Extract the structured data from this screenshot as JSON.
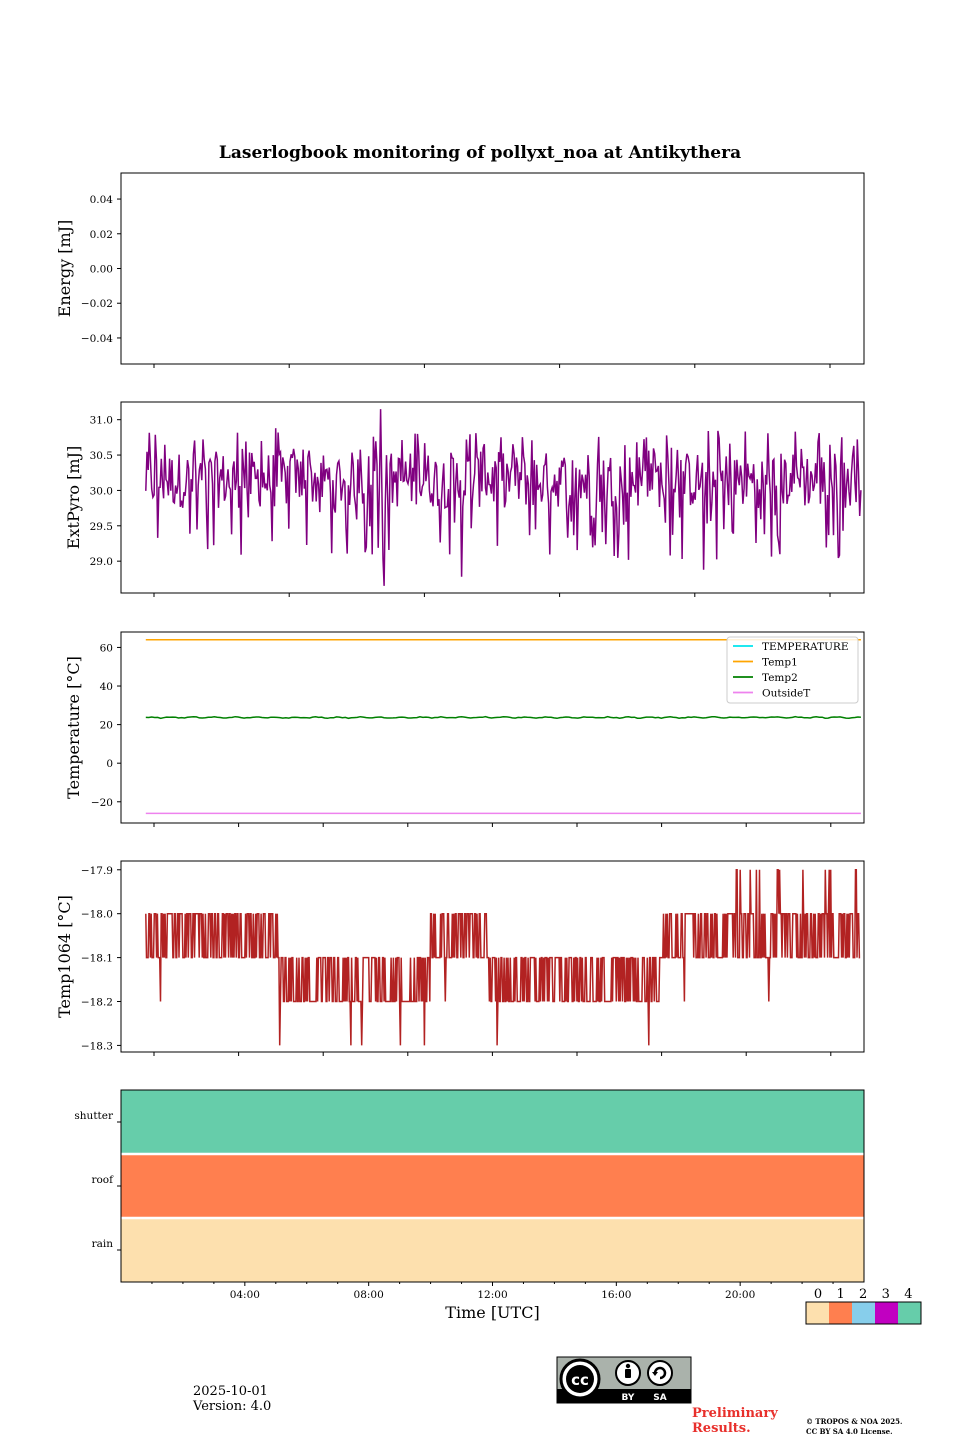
{
  "chart_data": [
    {
      "id": "energy",
      "type": "line",
      "title": "Laserlogbook monitoring of pollyxt_noa at Antikythera",
      "ylabel": "Energy [mJ]",
      "ylim": [
        -0.055,
        0.055
      ],
      "yticks": [
        0.04,
        0.02,
        0.0,
        -0.02,
        -0.04
      ],
      "ytick_labels": [
        "0.04",
        "0.02",
        "0.00",
        "−0.02",
        "−0.04"
      ],
      "series": []
    },
    {
      "id": "extpyro",
      "type": "line",
      "ylabel": "ExtPyro [mJ]",
      "ylim": [
        28.55,
        31.25
      ],
      "yticks": [
        31.0,
        30.5,
        30.0,
        29.5,
        29.0
      ],
      "ytick_labels": [
        "31.0",
        "30.5",
        "30.0",
        "29.5",
        "29.0"
      ],
      "series": [
        {
          "name": "ExtPyro",
          "color": "#800080",
          "x_range_hours": [
            0.8,
            23.9
          ],
          "mean": 30.15,
          "min": 28.65,
          "max": 31.15,
          "spikes": [
            {
              "x": 8.4,
              "y": 31.15
            },
            {
              "x": 8.5,
              "y": 28.65
            },
            {
              "x": 11.0,
              "y": 28.78
            },
            {
              "x": 5.0,
              "y": 30.88
            },
            {
              "x": 18.8,
              "y": 28.88
            },
            {
              "x": 21.8,
              "y": 30.83
            }
          ]
        }
      ]
    },
    {
      "id": "temperature",
      "type": "line",
      "ylabel": "Temperature [°C]",
      "ylim": [
        -31,
        68
      ],
      "yticks": [
        60,
        40,
        20,
        0,
        -20
      ],
      "ytick_labels": [
        "60",
        "40",
        "20",
        "0",
        "−20"
      ],
      "legend": "top-right",
      "series": [
        {
          "name": "TEMPERATURE",
          "color": "#00e5ee",
          "value": null
        },
        {
          "name": "Temp1",
          "color": "#ffa500",
          "value": 64
        },
        {
          "name": "Temp2",
          "color": "#008000",
          "value": 23.7
        },
        {
          "name": "OutsideT",
          "color": "#ee82ee",
          "value": -26
        }
      ]
    },
    {
      "id": "temp1064",
      "type": "line",
      "ylabel": "Temp1064 [°C]",
      "ylim": [
        -18.315,
        -17.88
      ],
      "yticks": [
        -17.9,
        -18.0,
        -18.1,
        -18.2,
        -18.3
      ],
      "ytick_labels": [
        "−17.9",
        "−18.0",
        "−18.1",
        "−18.2",
        "−18.3"
      ],
      "series": [
        {
          "name": "Temp1064",
          "color": "#b22222",
          "segments": [
            {
              "from": 0.8,
              "to": 5.1,
              "levels": [
                -18.0,
                -18.1
              ]
            },
            {
              "from": 5.1,
              "to": 10.0,
              "levels": [
                -18.1,
                -18.2
              ]
            },
            {
              "from": 10.0,
              "to": 11.9,
              "levels": [
                -18.0,
                -18.1
              ]
            },
            {
              "from": 11.9,
              "to": 17.4,
              "levels": [
                -18.1,
                -18.2
              ]
            },
            {
              "from": 17.4,
              "to": 19.8,
              "levels": [
                -18.0,
                -18.1
              ]
            },
            {
              "from": 19.8,
              "to": 23.9,
              "levels": [
                -17.9,
                -18.0,
                -18.1
              ]
            }
          ]
        }
      ]
    },
    {
      "id": "status",
      "type": "heatmap",
      "rows": [
        "shutter",
        "roof",
        "rain"
      ],
      "row_values": [
        4,
        1,
        0
      ],
      "xlabel": "Time [UTC]",
      "xlim_hours": [
        0,
        24
      ],
      "xticks_hours": [
        4,
        8,
        12,
        16,
        20
      ],
      "xtick_labels": [
        "04:00",
        "08:00",
        "12:00",
        "16:00",
        "20:00"
      ],
      "colorbar": {
        "ticks": [
          "0",
          "1",
          "2",
          "3",
          "4"
        ],
        "colors": [
          "#fde0ae",
          "#ff7f4f",
          "#87ceeb",
          "#c100c1",
          "#66cdaa"
        ]
      }
    }
  ],
  "footer": {
    "date": "2025-10-01",
    "version": "Version: 4.0",
    "license_badge": {
      "icon": "cc-by-sa-icon",
      "labels": [
        "BY",
        "SA"
      ]
    },
    "preliminary_line1": "Preliminary",
    "preliminary_line2": "Results.",
    "copyright_line1": "© TROPOS & NOA 2025.",
    "copyright_line2": "CC BY SA 4.0 License."
  }
}
